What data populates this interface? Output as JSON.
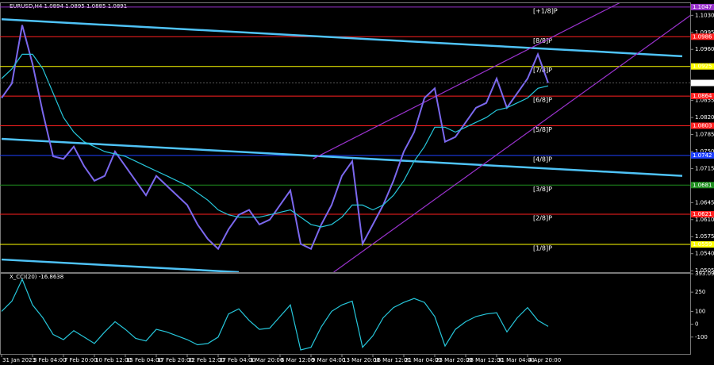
{
  "chart_data": [
    {
      "type": "line",
      "title": "EURUSD,H4  1.0894 1.0895 1.0885 1.0891",
      "categories": [
        "31 Jan 2023",
        null,
        null,
        "3 Feb 04:00",
        null,
        null,
        "7 Feb 20:00",
        null,
        null,
        "10 Feb 12:00",
        null,
        null,
        "15 Feb 04:00",
        null,
        null,
        "17 Feb 20:00",
        null,
        null,
        "22 Feb 12:00",
        null,
        null,
        "27 Feb 04:00",
        null,
        null,
        "1 Mar 20:00",
        null,
        null,
        "6 Mar 12:00",
        null,
        null,
        "9 Mar 04:00",
        null,
        null,
        "13 Mar 20:00",
        null,
        null,
        "16 Mar 12:00",
        null,
        null,
        "21 Mar 04:00",
        null,
        null,
        "23 Mar 20:00",
        null,
        null,
        "28 Mar 12:00",
        null,
        null,
        "31 Mar 04:00",
        null,
        null,
        "4 Apr 20:00",
        null,
        null,
        null,
        null,
        null,
        null,
        null,
        null,
        null,
        null,
        null,
        null,
        null,
        null,
        null
      ],
      "series": [
        {
          "color": "#7b68ee",
          "values": [
            1.086,
            1.089,
            1.101,
            1.093,
            1.083,
            1.074,
            1.0735,
            1.076,
            1.072,
            1.069,
            1.07,
            1.075,
            1.072,
            1.069,
            1.066,
            1.07,
            1.068,
            1.066,
            1.064,
            1.06,
            1.057,
            1.055,
            1.059,
            1.062,
            1.063,
            1.06,
            1.061,
            1.064,
            1.067,
            1.056,
            1.055,
            1.06,
            1.064,
            1.07,
            1.073,
            1.056,
            1.06,
            1.064,
            1.069,
            1.075,
            1.079,
            1.086,
            1.088,
            1.077,
            1.078,
            1.081,
            1.084,
            1.085,
            1.09,
            1.084,
            1.087,
            1.09,
            1.095,
            1.0891,
            null,
            null,
            null,
            null,
            null,
            null,
            null,
            null,
            null,
            null,
            null,
            null,
            null
          ]
        },
        {
          "color": "#26c6da",
          "values": [
            1.09,
            1.092,
            1.095,
            1.095,
            1.092,
            1.087,
            1.082,
            1.079,
            1.077,
            1.076,
            1.075,
            1.0745,
            1.074,
            1.073,
            1.072,
            1.071,
            1.07,
            1.069,
            1.068,
            1.0665,
            1.065,
            1.063,
            1.062,
            1.0615,
            1.0615,
            1.0615,
            1.062,
            1.0625,
            1.063,
            1.0615,
            1.06,
            1.0595,
            1.06,
            1.0615,
            1.064,
            1.064,
            1.063,
            1.064,
            1.066,
            1.069,
            1.073,
            1.076,
            1.08,
            1.08,
            1.079,
            1.08,
            1.081,
            1.082,
            1.0835,
            1.084,
            1.085,
            1.086,
            1.088,
            1.0885,
            null,
            null,
            null,
            null,
            null,
            null,
            null,
            null,
            null,
            null,
            null,
            null,
            null
          ]
        }
      ],
      "ylim": [
        1.0502,
        1.1055
      ],
      "yticks": [
        {
          "value": 1.103,
          "label": "1.1030"
        },
        {
          "value": 1.0995,
          "label": "1.0995"
        },
        {
          "value": 1.096,
          "label": "1.0960"
        },
        {
          "value": 1.0925,
          "label": "1.0925"
        },
        {
          "value": 1.089,
          "label": "1.0890"
        },
        {
          "value": 1.0855,
          "label": "1.0855"
        },
        {
          "value": 1.082,
          "label": "1.0820"
        },
        {
          "value": 1.0785,
          "label": "1.0785"
        },
        {
          "value": 1.075,
          "label": "1.0750"
        },
        {
          "value": 1.0715,
          "label": "1.0715"
        },
        {
          "value": 1.068,
          "label": "1.0680"
        },
        {
          "value": 1.0645,
          "label": "1.0645"
        },
        {
          "value": 1.061,
          "label": "1.0610"
        },
        {
          "value": 1.0575,
          "label": "1.0575"
        },
        {
          "value": 1.054,
          "label": "1.0540"
        },
        {
          "value": 1.0505,
          "label": "1.0505"
        }
      ],
      "price_label": 1.0891,
      "levels": [
        {
          "name": "[+1/8]P",
          "value": 1.1047,
          "color": "#9932cc"
        },
        {
          "name": "[8/8]P",
          "value": 1.0986,
          "color": "#ff2020"
        },
        {
          "name": "[7/8]P",
          "value": 1.0925,
          "color": "#ffff00"
        },
        {
          "name": "[6/8]P",
          "value": 1.0864,
          "color": "#ff2020"
        },
        {
          "name": "[5/8]P",
          "value": 1.0803,
          "color": "#ff2020"
        },
        {
          "name": "[4/8]P",
          "value": 1.0742,
          "color": "#1e40ff"
        },
        {
          "name": "[3/8]P",
          "value": 1.0681,
          "color": "#1f8f1f"
        },
        {
          "name": "[2/8]P",
          "value": 1.0621,
          "color": "#ff2020"
        },
        {
          "name": "[1/8]P",
          "value": 1.0559,
          "color": "#ffff00"
        }
      ],
      "trendlines": [
        {
          "x": [
            0,
            66
          ],
          "y": [
            1.1022,
            1.0946
          ],
          "color": "#4fc3f7"
        },
        {
          "x": [
            0,
            66
          ],
          "y": [
            1.0776,
            1.07
          ],
          "color": "#4fc3f7"
        },
        {
          "x": [
            0,
            23
          ],
          "y": [
            1.0528,
            1.0502
          ],
          "color": "#4fc3f7"
        },
        {
          "x": [
            30.2,
            60.6
          ],
          "y": [
            1.0735,
            1.1063
          ],
          "color": "#9932cc"
        },
        {
          "x": [
            32.2,
            66.8
          ],
          "y": [
            1.0502,
            1.103
          ],
          "color": "#9932cc"
        }
      ]
    },
    {
      "type": "line",
      "title": "X_CCI(20) -16.8638",
      "series": [
        {
          "color": "#26c6da",
          "values": [
            100,
            180,
            350,
            150,
            50,
            -80,
            -120,
            -50,
            -100,
            -150,
            -60,
            20,
            -40,
            -110,
            -130,
            -40,
            -60,
            -90,
            -120,
            -160,
            -150,
            -100,
            80,
            120,
            30,
            -40,
            -30,
            60,
            150,
            -200,
            -180,
            -20,
            100,
            150,
            180,
            -180,
            -90,
            50,
            130,
            170,
            200,
            170,
            60,
            -170,
            -40,
            20,
            60,
            80,
            90,
            -60,
            50,
            130,
            30,
            -17,
            null,
            null,
            null,
            null,
            null,
            null,
            null,
            null,
            null,
            null,
            null,
            null,
            null
          ]
        }
      ],
      "ylim": [
        -231,
        393.0944
      ],
      "yticks": [
        393.0944,
        250,
        100,
        0,
        -100
      ]
    }
  ]
}
